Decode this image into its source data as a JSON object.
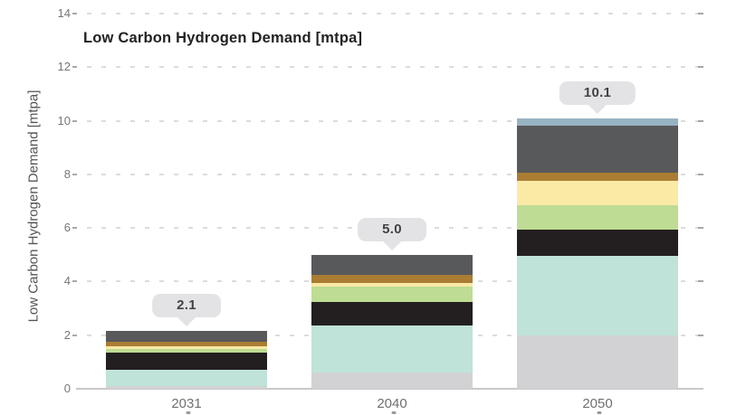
{
  "title": "Low Carbon Hydrogen Demand [mtpa]",
  "chart_data": {
    "type": "bar",
    "stacked": true,
    "title": "Low Carbon Hydrogen Demand [mtpa]",
    "ylabel": "Low Carbon Hydrogen Demand [mtpa]",
    "xlabel": "",
    "categories": [
      "2031",
      "2040",
      "2050"
    ],
    "total_labels": [
      "2.1",
      "5.0",
      "10.1"
    ],
    "totals": [
      2.1,
      5.0,
      10.1
    ],
    "series": [
      {
        "name": "light-gray-segment",
        "color": "#d2d2d4",
        "values": [
          0.1,
          0.6,
          2.0
        ]
      },
      {
        "name": "teal-segment",
        "color": "#c0e3d9",
        "values": [
          0.6,
          1.75,
          2.95
        ]
      },
      {
        "name": "black-segment",
        "color": "#231f20",
        "values": [
          0.65,
          0.9,
          1.0
        ]
      },
      {
        "name": "green-segment",
        "color": "#bedc94",
        "values": [
          0.15,
          0.55,
          0.9
        ]
      },
      {
        "name": "pale-yellow-segment",
        "color": "#fbe9a6",
        "values": [
          0.1,
          0.15,
          0.9
        ]
      },
      {
        "name": "gold-brown-segment",
        "color": "#aa7d33",
        "values": [
          0.15,
          0.3,
          0.3
        ]
      },
      {
        "name": "dark-gray-segment",
        "color": "#58595b",
        "values": [
          0.4,
          0.75,
          1.75
        ]
      },
      {
        "name": "blue-gray-segment",
        "color": "#97b3c3",
        "values": [
          0.0,
          0.0,
          0.3
        ]
      }
    ],
    "ytick_labels": [
      "0",
      "2",
      "4",
      "6",
      "8",
      "10",
      "12",
      "14"
    ],
    "yticks": [
      0,
      2,
      4,
      6,
      8,
      10,
      12,
      14
    ],
    "ylim": [
      0,
      14
    ],
    "grid": "horizontal-dashed",
    "legend_position": "none"
  },
  "colors": {
    "background": "#ffffff",
    "callout_bg": "#e3e3e5",
    "callout_text": "#424244",
    "title_text": "#242122",
    "ytick_text": "#76777a",
    "xtick_text": "#6f7072",
    "ylabel_text": "#545456",
    "gridline": "#dcdcdd",
    "gridline_end": "#a8a8aa",
    "axis_line": "#c9c9cb"
  }
}
